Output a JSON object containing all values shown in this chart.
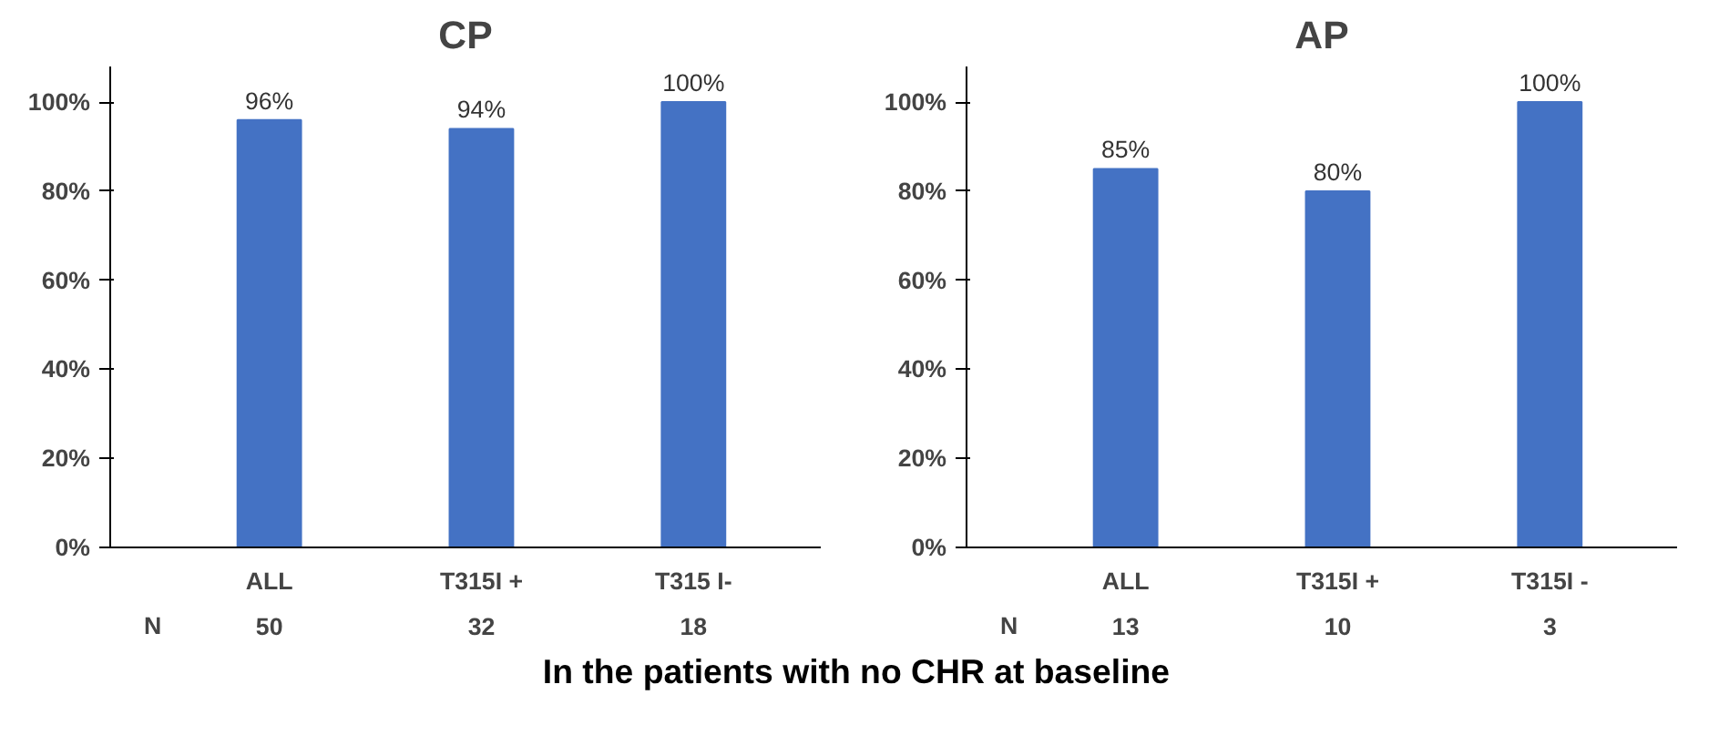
{
  "chart_data": [
    {
      "type": "bar",
      "title": "CP",
      "categories": [
        "ALL",
        "T315I +",
        "T315 I-"
      ],
      "values": [
        96,
        94,
        100
      ],
      "color": "#4472c4",
      "value_labels": [
        "96%",
        "94%",
        "100%"
      ],
      "ylim": [
        0,
        100
      ],
      "yticks": [
        {
          "value": 0,
          "label": "0%"
        },
        {
          "value": 20,
          "label": "20%"
        },
        {
          "value": 40,
          "label": "40%"
        },
        {
          "value": 60,
          "label": "60%"
        },
        {
          "value": 80,
          "label": "80%"
        },
        {
          "value": 100,
          "label": "100%"
        }
      ],
      "grid": false,
      "annotations": [
        "N",
        "50",
        "32",
        "18",
        "In the patients with no CHR at baseline"
      ]
    },
    {
      "type": "bar",
      "title": "AP",
      "categories": [
        "ALL",
        "T315I +",
        "T315I -"
      ],
      "values": [
        85,
        80,
        100
      ],
      "color": "#4472c4",
      "value_labels": [
        "85%",
        "80%",
        "100%"
      ],
      "ylim": [
        0,
        100
      ],
      "yticks": [
        {
          "value": 0,
          "label": "0%"
        },
        {
          "value": 20,
          "label": "20%"
        },
        {
          "value": 40,
          "label": "40%"
        },
        {
          "value": 60,
          "label": "60%"
        },
        {
          "value": 80,
          "label": "80%"
        },
        {
          "value": 100,
          "label": "100%"
        }
      ],
      "grid": false,
      "annotations": [
        "N",
        "13",
        "10",
        "3"
      ]
    }
  ]
}
